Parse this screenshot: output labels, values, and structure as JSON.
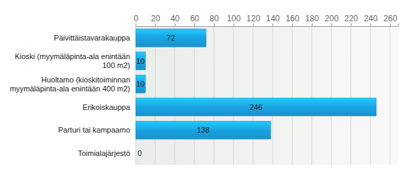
{
  "chart_data": {
    "type": "bar",
    "orientation": "horizontal",
    "categories": [
      "Päivittäistavarakauppa",
      "Kioski (myymäläpinta-ala enintään 100 m2)",
      "Huoltamo (kioskitoiminnan myymäläpinta-ala enintään 400 m2)",
      "Erikoiskauppa",
      "Parturi tai kampaamo",
      "Toimialajärjestö"
    ],
    "values": [
      72,
      10,
      10,
      246,
      138,
      0
    ],
    "color": "#1ba3e3",
    "xlim": [
      0,
      268
    ],
    "xticks": [
      0,
      20,
      40,
      60,
      80,
      100,
      120,
      140,
      160,
      180,
      200,
      220,
      240,
      260
    ],
    "grid": true,
    "data_labels": true
  }
}
